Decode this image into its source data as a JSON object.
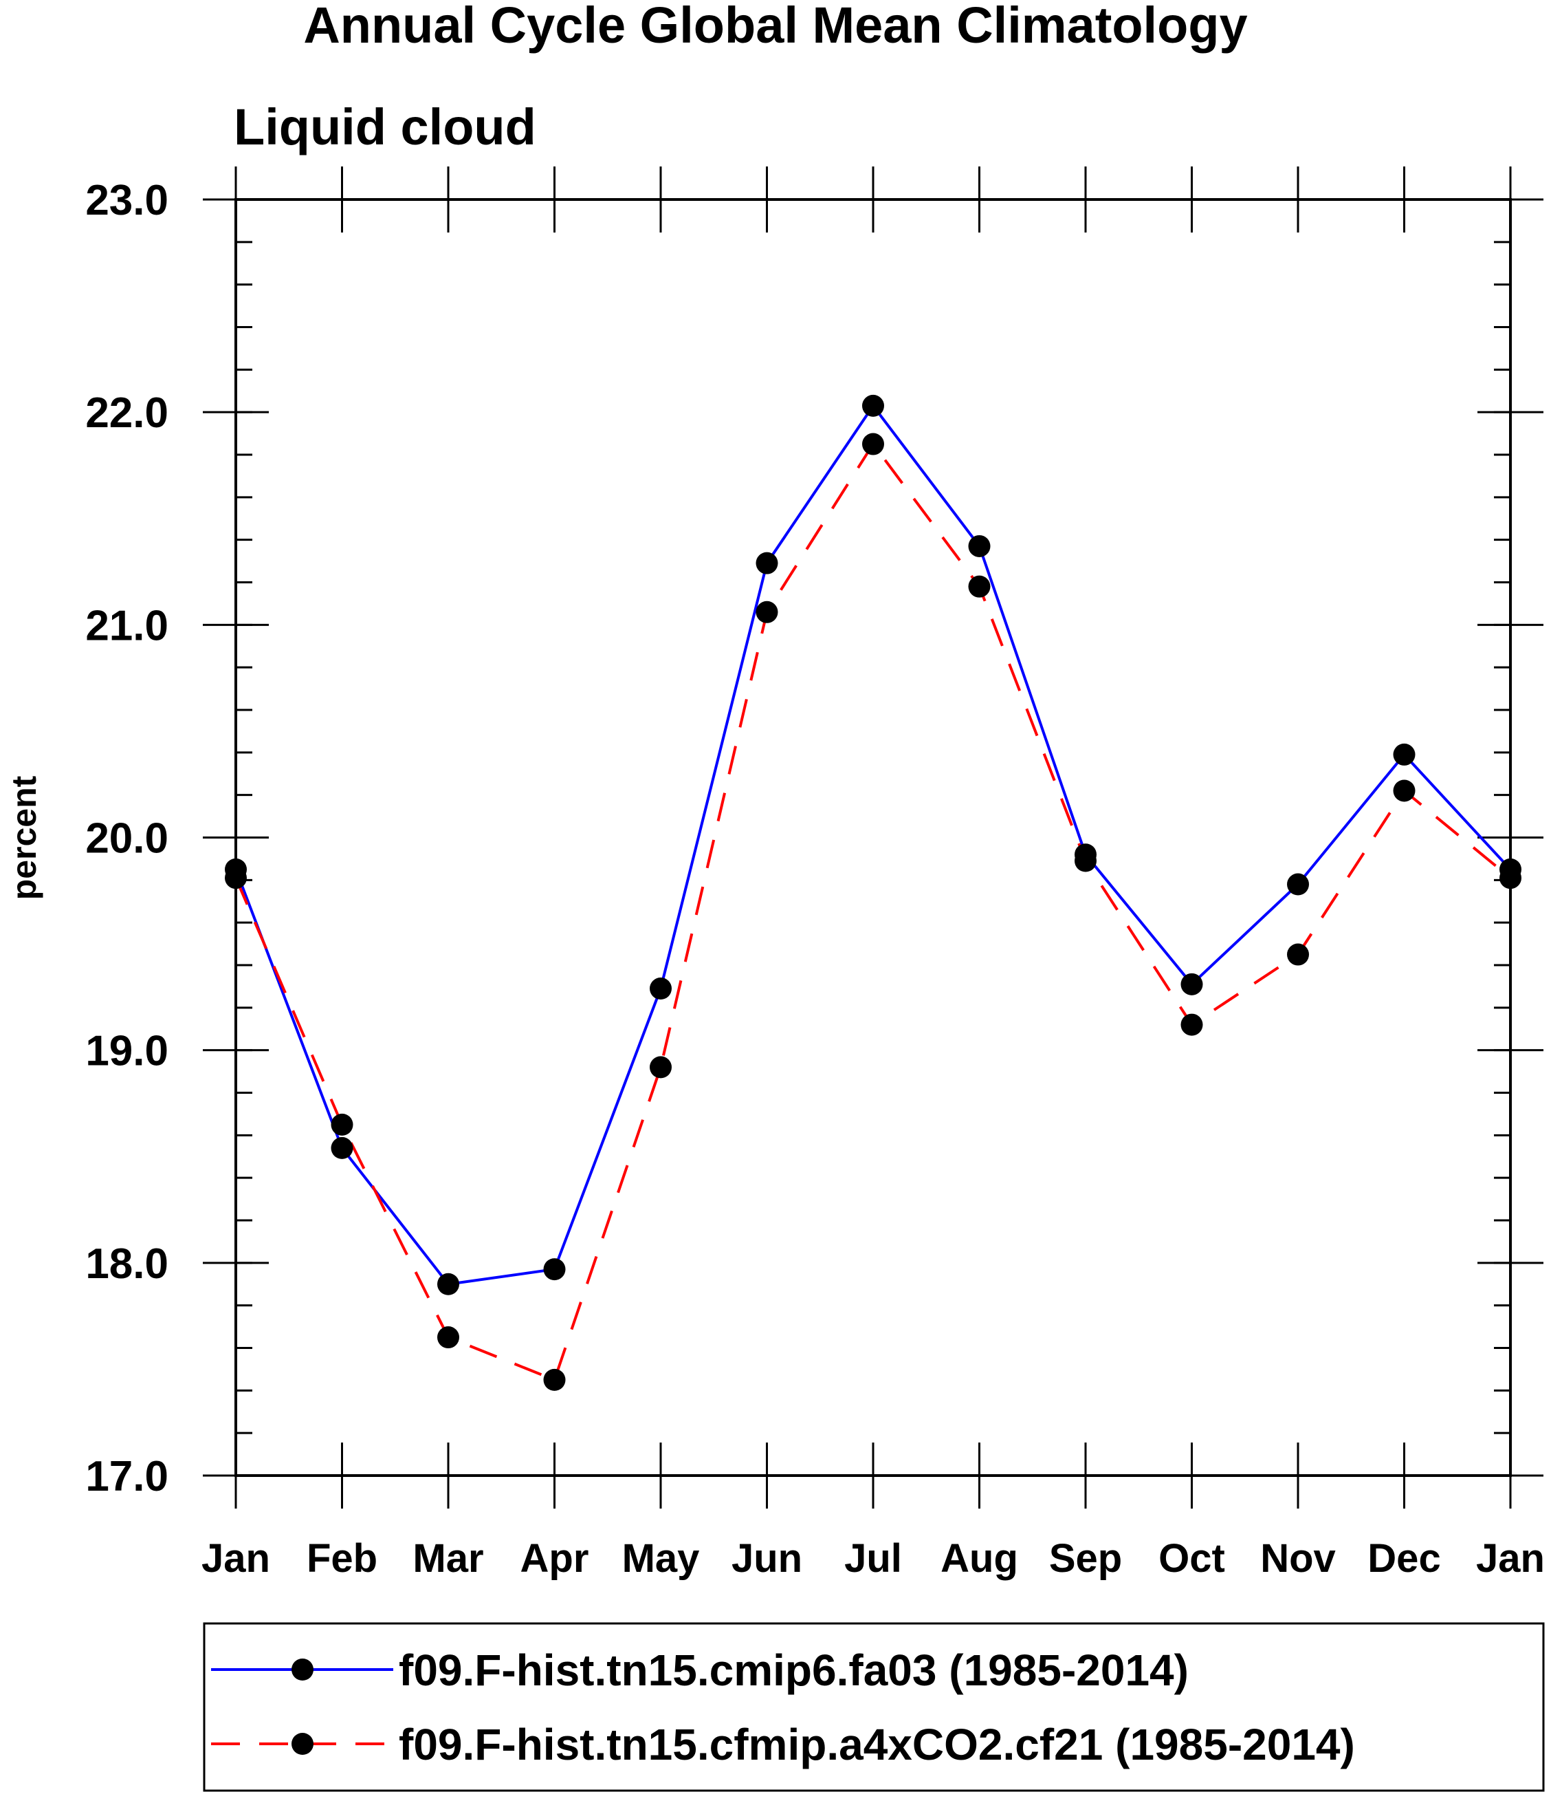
{
  "chart_data": {
    "type": "line",
    "title": "Annual Cycle Global Mean Climatology",
    "subtitle": "Liquid cloud",
    "xlabel": "",
    "ylabel": "percent",
    "categories": [
      "Jan",
      "Feb",
      "Mar",
      "Apr",
      "May",
      "Jun",
      "Jul",
      "Aug",
      "Sep",
      "Oct",
      "Nov",
      "Dec",
      "Jan"
    ],
    "ylim": [
      17.0,
      23.0
    ],
    "yticks": [
      17.0,
      18.0,
      19.0,
      20.0,
      21.0,
      22.0,
      23.0
    ],
    "ytick_labels": [
      "17.0",
      "18.0",
      "19.0",
      "20.0",
      "21.0",
      "22.0",
      "23.0"
    ],
    "y_minor_step": 0.2,
    "grid": false,
    "legend_position": "bottom",
    "series": [
      {
        "name": "f09.F-hist.tn15.cmip6.fa03 (1985-2014)",
        "color": "#0000ff",
        "line_style": "solid",
        "marker": "filled-circle",
        "values": [
          19.85,
          18.54,
          17.9,
          17.97,
          19.29,
          21.29,
          22.03,
          21.37,
          19.92,
          19.31,
          19.78,
          20.39,
          19.85
        ]
      },
      {
        "name": "f09.F-hist.tn15.cfmip.a4xCO2.cf21 (1985-2014)",
        "color": "#ff0000",
        "line_style": "dashed",
        "marker": "filled-circle",
        "values": [
          19.81,
          18.65,
          17.65,
          17.45,
          18.92,
          21.06,
          21.85,
          21.18,
          19.89,
          19.12,
          19.45,
          20.22,
          19.81
        ]
      }
    ]
  }
}
